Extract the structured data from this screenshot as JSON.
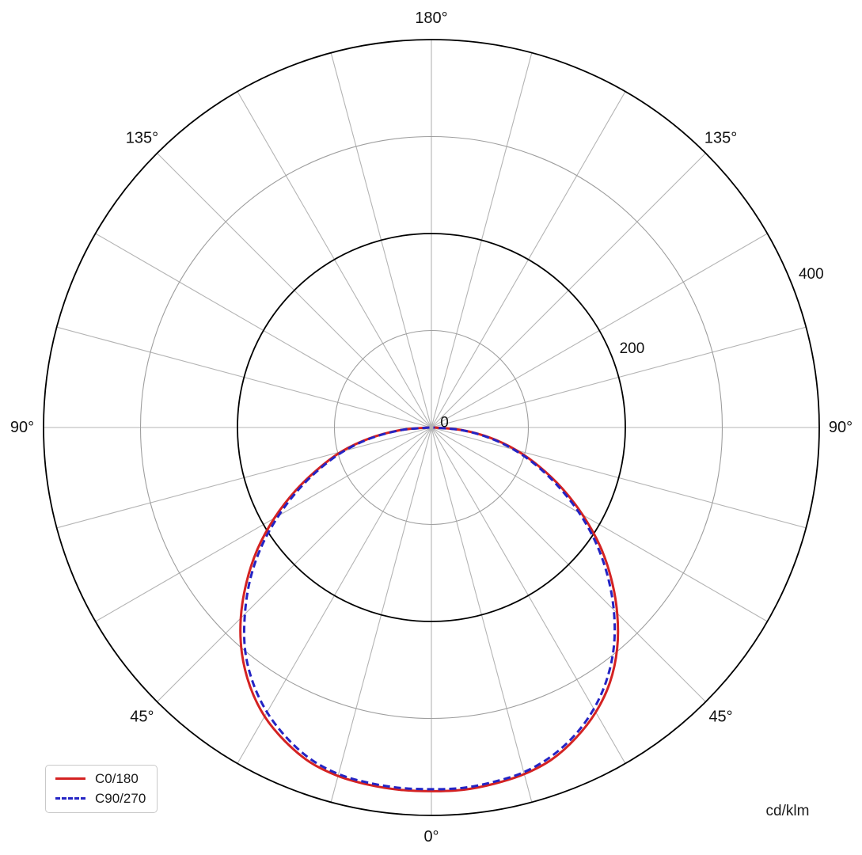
{
  "chart_data": {
    "type": "polar_photometric",
    "unit_label": "cd/klm",
    "orientation": "0deg_at_bottom",
    "angular_grid_step_deg": 15,
    "angle_labels": [
      {
        "text": "0°",
        "deg": 0,
        "side": 1
      },
      {
        "text": "45°",
        "deg": 45,
        "side": 1
      },
      {
        "text": "45°",
        "deg": 45,
        "side": -1
      },
      {
        "text": "90°",
        "deg": 90,
        "side": 1
      },
      {
        "text": "90°",
        "deg": 90,
        "side": -1
      },
      {
        "text": "135°",
        "deg": 135,
        "side": 1
      },
      {
        "text": "135°",
        "deg": 135,
        "side": -1
      },
      {
        "text": "180°",
        "deg": 180,
        "side": 1
      }
    ],
    "radial_axis": {
      "max": 400,
      "ticks": [
        {
          "value": 100,
          "major": false
        },
        {
          "value": 200,
          "major": true
        },
        {
          "value": 300,
          "major": false
        },
        {
          "value": 400,
          "major": true
        }
      ],
      "labels": [
        {
          "value": 0,
          "text": "0"
        },
        {
          "value": 200,
          "text": "200"
        },
        {
          "value": 400,
          "text": "400"
        }
      ],
      "label_angle_deg": 22.5
    },
    "gamma_deg": [
      0,
      5,
      10,
      15,
      20,
      25,
      30,
      35,
      40,
      45,
      50,
      55,
      60,
      65,
      70,
      75,
      80,
      85,
      90
    ],
    "series": [
      {
        "name": "C0/180",
        "color": "#d42222",
        "style": "solid",
        "right_values": [
          375,
          375,
          373,
          370,
          364,
          353,
          339,
          321,
          298,
          271,
          242,
          212,
          180,
          149,
          119,
          91,
          62,
          32,
          3
        ],
        "left_values": [
          375,
          375,
          374,
          372,
          367,
          357,
          344,
          326,
          304,
          278,
          249,
          219,
          187,
          155,
          124,
          96,
          65,
          33,
          3
        ]
      },
      {
        "name": "C90/270",
        "color": "#2424c4",
        "style": "dashed",
        "right_values": [
          373,
          373,
          371,
          368,
          361,
          350,
          335,
          316,
          293,
          266,
          237,
          207,
          176,
          145,
          116,
          88,
          60,
          31,
          2
        ],
        "left_values": [
          373,
          373,
          372,
          370,
          364,
          353,
          339,
          321,
          299,
          272,
          244,
          214,
          182,
          151,
          121,
          93,
          63,
          32,
          2
        ]
      }
    ],
    "grid_colors": {
      "spoke": "#b4b4b4",
      "minor_circle": "#9e9e9e",
      "major_circle": "#000000",
      "text": "#111111"
    }
  },
  "legend_title": ""
}
